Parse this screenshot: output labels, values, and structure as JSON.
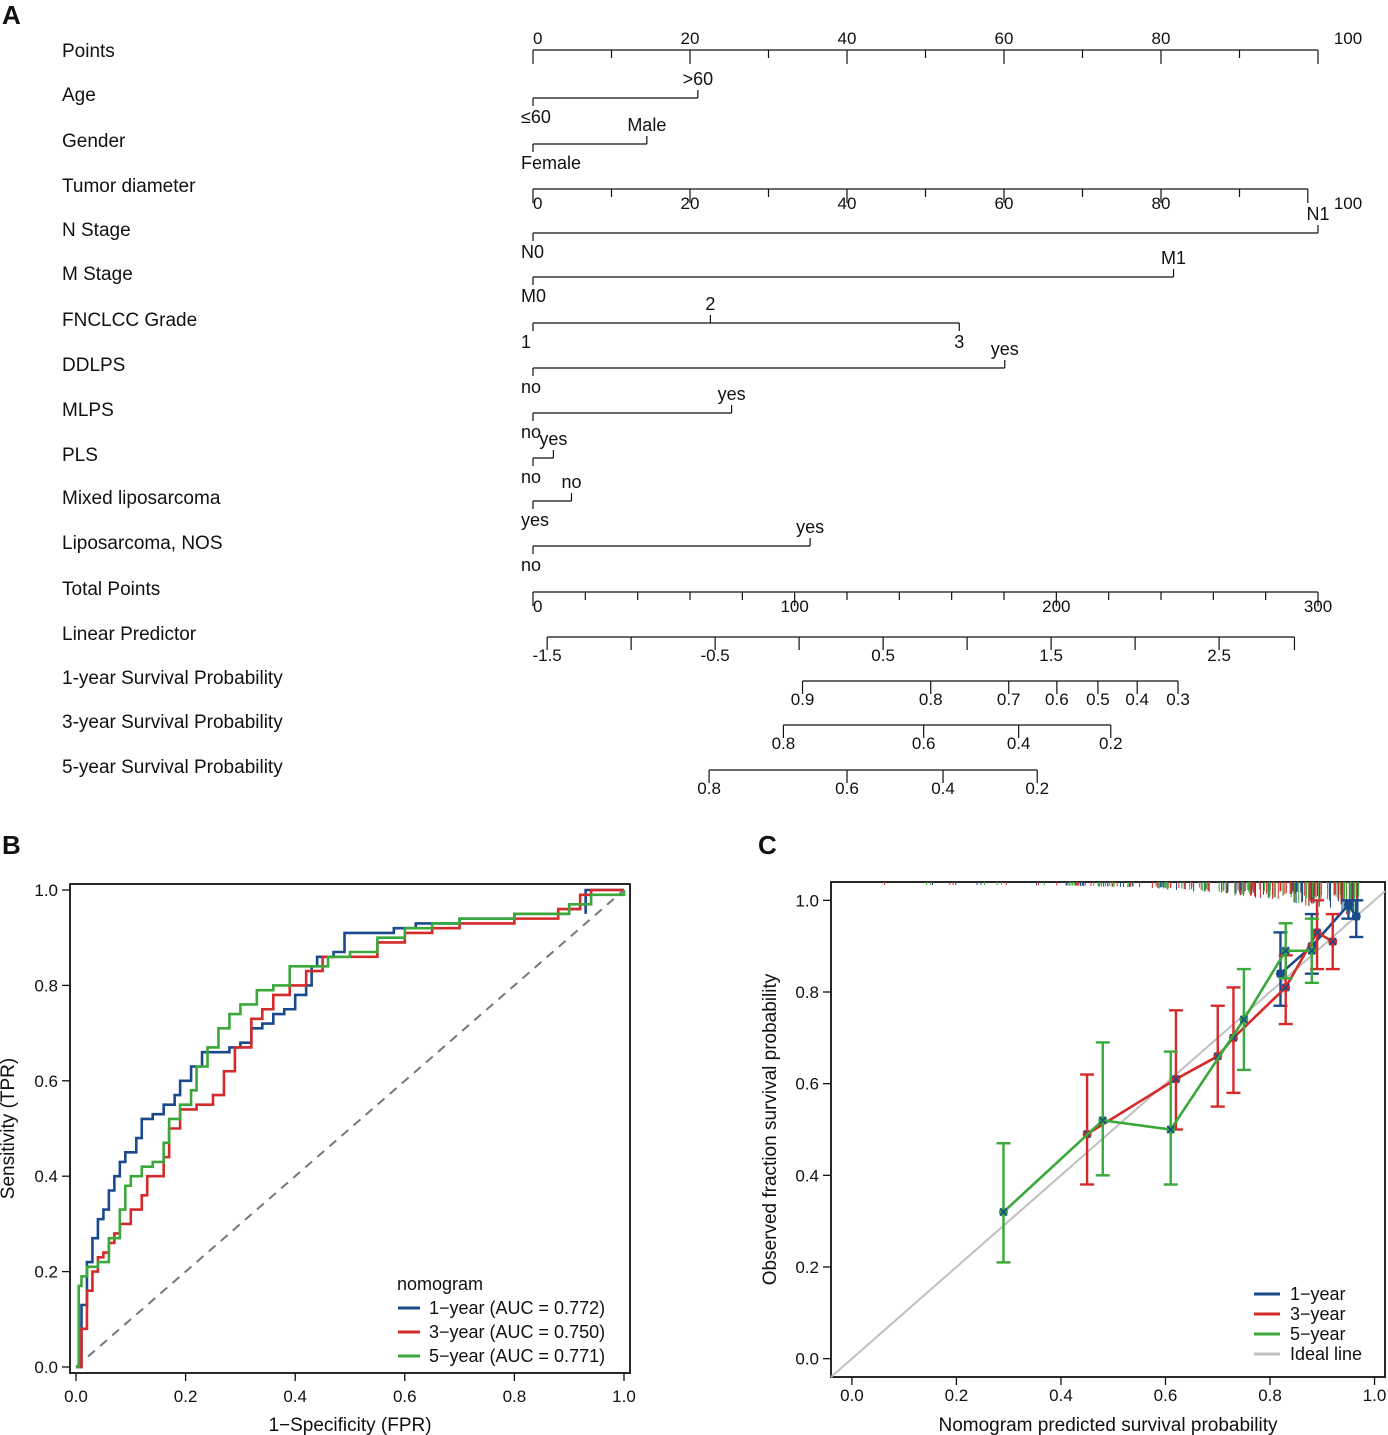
{
  "panels": {
    "a": "A",
    "b": "B",
    "c": "C"
  },
  "nomogram": {
    "rows": [
      {
        "label": "Points",
        "kind": "axis",
        "range": [
          0,
          100
        ],
        "labels": [
          0,
          20,
          40,
          60,
          80,
          100
        ],
        "minor": 10
      },
      {
        "label": "Age",
        "kind": "cat",
        "levels": [
          {
            "text": "≤60",
            "pts": 0,
            "pos": "below"
          },
          {
            "text": ">60",
            "pts": 21,
            "pos": "above"
          }
        ]
      },
      {
        "label": "Gender",
        "kind": "cat",
        "levels": [
          {
            "text": "Female",
            "pts": 0,
            "pos": "below"
          },
          {
            "text": "Male",
            "pts": 14.5,
            "pos": "above"
          }
        ]
      },
      {
        "label": "Tumor diameter",
        "kind": "axis",
        "range": [
          0,
          100
        ],
        "labels": [
          0,
          20,
          40,
          60,
          80,
          100
        ],
        "minor": 10,
        "end_points": 98.7
      },
      {
        "label": "N Stage",
        "kind": "cat",
        "levels": [
          {
            "text": "N0",
            "pts": 0,
            "pos": "below"
          },
          {
            "text": "N1",
            "pts": 100,
            "pos": "above"
          }
        ]
      },
      {
        "label": "M Stage",
        "kind": "cat",
        "levels": [
          {
            "text": "M0",
            "pts": 0,
            "pos": "below"
          },
          {
            "text": "M1",
            "pts": 81.6,
            "pos": "above"
          }
        ]
      },
      {
        "label": "FNCLCC Grade",
        "kind": "cat",
        "levels": [
          {
            "text": "1",
            "pts": 0,
            "pos": "below"
          },
          {
            "text": "2",
            "pts": 22.6,
            "pos": "above"
          },
          {
            "text": "3",
            "pts": 54.3,
            "pos": "below"
          }
        ]
      },
      {
        "label": "DDLPS",
        "kind": "cat",
        "levels": [
          {
            "text": "no",
            "pts": 0,
            "pos": "below"
          },
          {
            "text": "yes",
            "pts": 60.1,
            "pos": "above"
          }
        ]
      },
      {
        "label": "MLPS",
        "kind": "cat",
        "levels": [
          {
            "text": "no",
            "pts": 0,
            "pos": "below"
          },
          {
            "text": "yes",
            "pts": 25.3,
            "pos": "above"
          }
        ]
      },
      {
        "label": "PLS",
        "kind": "cat",
        "levels": [
          {
            "text": "no",
            "pts": 0,
            "pos": "below"
          },
          {
            "text": "yes",
            "pts": 2.6,
            "pos": "above"
          }
        ]
      },
      {
        "label": "Mixed liposarcoma",
        "kind": "cat",
        "levels": [
          {
            "text": "yes",
            "pts": 0,
            "pos": "below"
          },
          {
            "text": "no",
            "pts": 4.9,
            "pos": "above"
          }
        ]
      },
      {
        "label": "Liposarcoma, NOS",
        "kind": "cat",
        "levels": [
          {
            "text": "no",
            "pts": 0,
            "pos": "below"
          },
          {
            "text": "yes",
            "pts": 35.3,
            "pos": "above"
          }
        ]
      },
      {
        "label": "Total Points",
        "kind": "axis",
        "range": [
          0,
          300
        ],
        "labels": [
          0,
          100,
          200,
          300
        ],
        "minor": 20
      },
      {
        "label": "Linear Predictor",
        "kind": "scale",
        "ticks": [
          {
            "tp": 5.4,
            "label": "-1.5"
          },
          {
            "tp": 37.5,
            "label": ""
          },
          {
            "tp": 69.6,
            "label": "-0.5"
          },
          {
            "tp": 101.7,
            "label": ""
          },
          {
            "tp": 133.8,
            "label": "0.5"
          },
          {
            "tp": 165.9,
            "label": ""
          },
          {
            "tp": 198.0,
            "label": "1.5"
          },
          {
            "tp": 230.1,
            "label": ""
          },
          {
            "tp": 262.2,
            "label": "2.5"
          },
          {
            "tp": 291.0,
            "label": ""
          }
        ]
      },
      {
        "label": "1-year Survival Probability",
        "kind": "scale",
        "ticks": [
          {
            "tp": 103,
            "label": "0.9"
          },
          {
            "tp": 152,
            "label": "0.8"
          },
          {
            "tp": 181.8,
            "label": "0.7"
          },
          {
            "tp": 200.2,
            "label": "0.6"
          },
          {
            "tp": 215.9,
            "label": "0.5"
          },
          {
            "tp": 230.9,
            "label": "0.4"
          },
          {
            "tp": 246.5,
            "label": "0.3"
          }
        ]
      },
      {
        "label": "3-year Survival Probability",
        "kind": "scale",
        "ticks": [
          {
            "tp": 95.7,
            "label": "0.8"
          },
          {
            "tp": 149.3,
            "label": "0.6"
          },
          {
            "tp": 185.6,
            "label": "0.4"
          },
          {
            "tp": 220.8,
            "label": "0.2"
          }
        ]
      },
      {
        "label": "5-year Survival Probability",
        "kind": "scale",
        "ticks": [
          {
            "tp": 67.3,
            "label": "0.8"
          },
          {
            "tp": 120.0,
            "label": "0.6"
          },
          {
            "tp": 156.7,
            "label": "0.4"
          },
          {
            "tp": 192.7,
            "label": "0.2"
          }
        ]
      }
    ]
  },
  "roc": {
    "type": "line",
    "xlabel": "1−Specificity (FPR)",
    "ylabel": "Sensitivity (TPR)",
    "xlim": [
      0,
      1
    ],
    "ylim": [
      0,
      1
    ],
    "xticks": [
      "0.0",
      "0.2",
      "0.4",
      "0.6",
      "0.8",
      "1.0"
    ],
    "yticks": [
      "0.0",
      "0.2",
      "0.4",
      "0.6",
      "0.8",
      "1.0"
    ],
    "legend_title": "nomogram",
    "series": [
      {
        "name": "1−year (AUC = 0.772)",
        "color": "#1a4a8c",
        "points": [
          [
            0,
            0
          ],
          [
            0.01,
            0.13
          ],
          [
            0.02,
            0.22
          ],
          [
            0.03,
            0.27
          ],
          [
            0.04,
            0.31
          ],
          [
            0.05,
            0.33
          ],
          [
            0.06,
            0.37
          ],
          [
            0.07,
            0.4
          ],
          [
            0.08,
            0.43
          ],
          [
            0.09,
            0.45
          ],
          [
            0.11,
            0.48
          ],
          [
            0.12,
            0.52
          ],
          [
            0.14,
            0.53
          ],
          [
            0.16,
            0.55
          ],
          [
            0.18,
            0.57
          ],
          [
            0.19,
            0.6
          ],
          [
            0.21,
            0.63
          ],
          [
            0.23,
            0.66
          ],
          [
            0.26,
            0.66
          ],
          [
            0.28,
            0.67
          ],
          [
            0.3,
            0.68
          ],
          [
            0.32,
            0.71
          ],
          [
            0.34,
            0.72
          ],
          [
            0.36,
            0.74
          ],
          [
            0.38,
            0.75
          ],
          [
            0.4,
            0.78
          ],
          [
            0.42,
            0.8
          ],
          [
            0.43,
            0.84
          ],
          [
            0.44,
            0.86
          ],
          [
            0.47,
            0.87
          ],
          [
            0.49,
            0.91
          ],
          [
            0.54,
            0.91
          ],
          [
            0.58,
            0.92
          ],
          [
            0.62,
            0.93
          ],
          [
            0.7,
            0.94
          ],
          [
            0.8,
            0.95
          ],
          [
            0.9,
            0.96
          ],
          [
            0.92,
            0.97
          ],
          [
            0.93,
            0.95
          ],
          [
            0.93,
            1.0
          ],
          [
            1.0,
            1.0
          ]
        ]
      },
      {
        "name": "3−year (AUC = 0.750)",
        "color": "#d42a2a",
        "points": [
          [
            0,
            0
          ],
          [
            0.01,
            0.08
          ],
          [
            0.02,
            0.16
          ],
          [
            0.03,
            0.2
          ],
          [
            0.04,
            0.23
          ],
          [
            0.05,
            0.24
          ],
          [
            0.06,
            0.26
          ],
          [
            0.07,
            0.28
          ],
          [
            0.08,
            0.3
          ],
          [
            0.1,
            0.33
          ],
          [
            0.12,
            0.36
          ],
          [
            0.13,
            0.4
          ],
          [
            0.16,
            0.44
          ],
          [
            0.17,
            0.5
          ],
          [
            0.19,
            0.54
          ],
          [
            0.22,
            0.55
          ],
          [
            0.25,
            0.57
          ],
          [
            0.27,
            0.62
          ],
          [
            0.29,
            0.67
          ],
          [
            0.32,
            0.73
          ],
          [
            0.34,
            0.75
          ],
          [
            0.36,
            0.78
          ],
          [
            0.39,
            0.8
          ],
          [
            0.42,
            0.83
          ],
          [
            0.45,
            0.86
          ],
          [
            0.5,
            0.86
          ],
          [
            0.55,
            0.89
          ],
          [
            0.6,
            0.91
          ],
          [
            0.65,
            0.92
          ],
          [
            0.7,
            0.93
          ],
          [
            0.8,
            0.94
          ],
          [
            0.88,
            0.96
          ],
          [
            0.92,
            0.99
          ],
          [
            0.94,
            1.0
          ],
          [
            1.0,
            1.0
          ]
        ]
      },
      {
        "name": "5−year (AUC = 0.771)",
        "color": "#3aa83a",
        "points": [
          [
            0,
            0
          ],
          [
            0.005,
            0.17
          ],
          [
            0.01,
            0.19
          ],
          [
            0.02,
            0.21
          ],
          [
            0.04,
            0.22
          ],
          [
            0.06,
            0.27
          ],
          [
            0.08,
            0.33
          ],
          [
            0.09,
            0.38
          ],
          [
            0.1,
            0.4
          ],
          [
            0.12,
            0.42
          ],
          [
            0.14,
            0.43
          ],
          [
            0.16,
            0.47
          ],
          [
            0.17,
            0.52
          ],
          [
            0.19,
            0.55
          ],
          [
            0.21,
            0.58
          ],
          [
            0.22,
            0.63
          ],
          [
            0.24,
            0.67
          ],
          [
            0.26,
            0.71
          ],
          [
            0.28,
            0.74
          ],
          [
            0.3,
            0.76
          ],
          [
            0.33,
            0.79
          ],
          [
            0.36,
            0.8
          ],
          [
            0.39,
            0.84
          ],
          [
            0.43,
            0.84
          ],
          [
            0.46,
            0.86
          ],
          [
            0.5,
            0.87
          ],
          [
            0.55,
            0.9
          ],
          [
            0.6,
            0.92
          ],
          [
            0.65,
            0.93
          ],
          [
            0.7,
            0.94
          ],
          [
            0.8,
            0.95
          ],
          [
            0.9,
            0.97
          ],
          [
            0.94,
            0.99
          ],
          [
            1.0,
            1.0
          ]
        ]
      }
    ]
  },
  "calibration": {
    "type": "line",
    "xlabel": "Nomogram predicted survival probability",
    "ylabel": "Observed fraction survival probability",
    "xlim": [
      -0.04,
      1.02
    ],
    "ylim": [
      -0.04,
      1.04
    ],
    "xticks": [
      "0.0",
      "0.2",
      "0.4",
      "0.6",
      "0.8",
      "1.0"
    ],
    "yticks": [
      "0.0",
      "0.2",
      "0.4",
      "0.6",
      "0.8",
      "1.0"
    ],
    "ideal_name": "Ideal line",
    "ideal_color": "#c0c0c0",
    "series": [
      {
        "name": "1−year",
        "color": "#1a4a8c",
        "points": [
          [
            0.82,
            0.84,
            0.77,
            0.93
          ],
          [
            0.88,
            0.9,
            0.84,
            0.97
          ],
          [
            0.95,
            0.99,
            0.96,
            1.0
          ],
          [
            0.965,
            0.965,
            0.92,
            1.0
          ]
        ]
      },
      {
        "name": "3−year",
        "color": "#d42a2a",
        "points": [
          [
            0.45,
            0.49,
            0.38,
            0.62
          ],
          [
            0.62,
            0.61,
            0.5,
            0.76
          ],
          [
            0.7,
            0.66,
            0.55,
            0.77
          ],
          [
            0.73,
            0.7,
            0.58,
            0.81
          ],
          [
            0.83,
            0.81,
            0.73,
            0.88
          ],
          [
            0.89,
            0.93,
            0.85,
            1.0
          ],
          [
            0.92,
            0.91,
            0.85,
            0.97
          ]
        ]
      },
      {
        "name": "5−year",
        "color": "#3aa83a",
        "points": [
          [
            0.29,
            0.32,
            0.21,
            0.47
          ],
          [
            0.48,
            0.52,
            0.4,
            0.69
          ],
          [
            0.61,
            0.5,
            0.38,
            0.67
          ],
          [
            0.75,
            0.74,
            0.63,
            0.85
          ],
          [
            0.83,
            0.89,
            0.83,
            0.95
          ],
          [
            0.88,
            0.89,
            0.82,
            0.96
          ]
        ]
      }
    ]
  }
}
